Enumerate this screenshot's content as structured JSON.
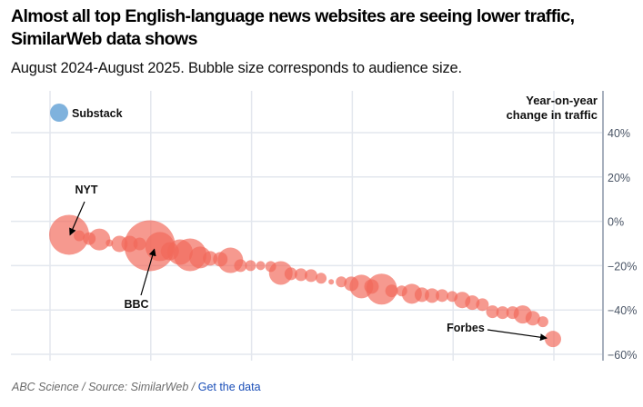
{
  "header": {
    "title": "Almost all top English-language news websites are seeing lower traffic, SimilarWeb data shows",
    "subtitle": "August 2024-August 2025. Bubble size corresponds to audience size."
  },
  "footer": {
    "credit": "ABC Science / Source: SimilarWeb /",
    "link_label": "Get the data"
  },
  "colors": {
    "bubble": "#f2695a",
    "highlight": "#7fb2dd",
    "grid": "#e3e7ee",
    "axis": "#a7b0bd",
    "tick_text": "#4a5566"
  },
  "chart_data": {
    "type": "scatter",
    "title": "Almost all top English-language news websites are seeing lower traffic, SimilarWeb data shows",
    "subtitle": "August 2024-August 2025. Bubble size corresponds to audience size.",
    "xlabel": "",
    "ylabel": "Year-on-year change in traffic",
    "ylabel_lines": [
      "Year-on-year",
      "change in traffic"
    ],
    "y_axis_position": "right",
    "ylim": [
      -60,
      40
    ],
    "yticks": [
      40,
      20,
      0,
      -20,
      -40,
      -60
    ],
    "ytick_labels": [
      "40%",
      "20%",
      "0%",
      "−20%",
      "−40%",
      "−60%"
    ],
    "x_gridlines": 6,
    "grid": true,
    "size_encoding": "audience size",
    "highlight": {
      "label": "Substack",
      "value": 49,
      "size": 10
    },
    "annotations": [
      {
        "label": "NYT",
        "index": 0
      },
      {
        "label": "BBC",
        "index": 8
      },
      {
        "label": "Forbes",
        "index": 48
      }
    ],
    "points": [
      {
        "rank": 1,
        "value": -6.1,
        "size": 22
      },
      {
        "rank": 2,
        "value": -6.5,
        "size": 6
      },
      {
        "rank": 3,
        "value": -7.8,
        "size": 7
      },
      {
        "rank": 4,
        "value": -8.2,
        "size": 12
      },
      {
        "rank": 5,
        "value": -9.8,
        "size": 4
      },
      {
        "rank": 6,
        "value": -10.2,
        "size": 9
      },
      {
        "rank": 7,
        "value": -10.2,
        "size": 9
      },
      {
        "rank": 8,
        "value": -10.2,
        "size": 7
      },
      {
        "rank": 9,
        "value": -11.0,
        "size": 28
      },
      {
        "rank": 10,
        "value": -11.4,
        "size": 16
      },
      {
        "rank": 11,
        "value": -13.5,
        "size": 10
      },
      {
        "rank": 12,
        "value": -13.9,
        "size": 14
      },
      {
        "rank": 13,
        "value": -15.1,
        "size": 18
      },
      {
        "rank": 14,
        "value": -16.3,
        "size": 12
      },
      {
        "rank": 15,
        "value": -16.7,
        "size": 8
      },
      {
        "rank": 16,
        "value": -17.1,
        "size": 8
      },
      {
        "rank": 17,
        "value": -17.6,
        "size": 14
      },
      {
        "rank": 18,
        "value": -20.0,
        "size": 7
      },
      {
        "rank": 19,
        "value": -20.0,
        "size": 6
      },
      {
        "rank": 20,
        "value": -20.0,
        "size": 5
      },
      {
        "rank": 21,
        "value": -20.4,
        "size": 6
      },
      {
        "rank": 22,
        "value": -23.3,
        "size": 13
      },
      {
        "rank": 23,
        "value": -23.7,
        "size": 7
      },
      {
        "rank": 24,
        "value": -24.1,
        "size": 7
      },
      {
        "rank": 25,
        "value": -24.5,
        "size": 7
      },
      {
        "rank": 26,
        "value": -25.7,
        "size": 6
      },
      {
        "rank": 27,
        "value": -27.3,
        "size": 3
      },
      {
        "rank": 28,
        "value": -27.3,
        "size": 6
      },
      {
        "rank": 29,
        "value": -28.2,
        "size": 8
      },
      {
        "rank": 30,
        "value": -29.4,
        "size": 13
      },
      {
        "rank": 31,
        "value": -29.4,
        "size": 8
      },
      {
        "rank": 32,
        "value": -30.6,
        "size": 17
      },
      {
        "rank": 33,
        "value": -31.4,
        "size": 7
      },
      {
        "rank": 34,
        "value": -31.4,
        "size": 6
      },
      {
        "rank": 35,
        "value": -32.7,
        "size": 11
      },
      {
        "rank": 36,
        "value": -33.1,
        "size": 8
      },
      {
        "rank": 37,
        "value": -33.5,
        "size": 8
      },
      {
        "rank": 38,
        "value": -33.5,
        "size": 7
      },
      {
        "rank": 39,
        "value": -33.9,
        "size": 6
      },
      {
        "rank": 40,
        "value": -35.5,
        "size": 9
      },
      {
        "rank": 41,
        "value": -36.7,
        "size": 8
      },
      {
        "rank": 42,
        "value": -37.6,
        "size": 7
      },
      {
        "rank": 43,
        "value": -40.8,
        "size": 7
      },
      {
        "rank": 44,
        "value": -41.2,
        "size": 7
      },
      {
        "rank": 45,
        "value": -41.2,
        "size": 7
      },
      {
        "rank": 46,
        "value": -42.0,
        "size": 10
      },
      {
        "rank": 47,
        "value": -43.7,
        "size": 8
      },
      {
        "rank": 48,
        "value": -45.3,
        "size": 6
      },
      {
        "rank": 49,
        "value": -53.1,
        "size": 9
      }
    ]
  }
}
